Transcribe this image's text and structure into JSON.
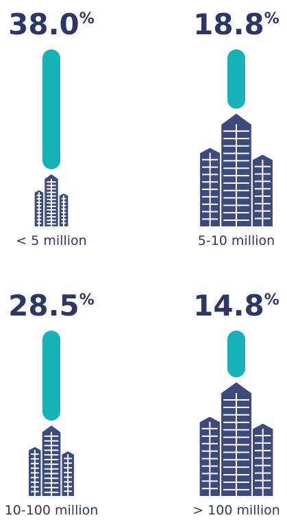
{
  "chart_data": {
    "type": "bar",
    "categories": [
      "< 5 million",
      "5-10 million",
      "10-100 million",
      "> 100 million"
    ],
    "values": [
      38.0,
      18.8,
      28.5,
      14.8
    ],
    "value_labels": [
      "38.0",
      "18.8",
      "28.5",
      "14.8"
    ],
    "unit": "%",
    "color": "#17b2b8",
    "icon_color": "#3c4a7c"
  }
}
